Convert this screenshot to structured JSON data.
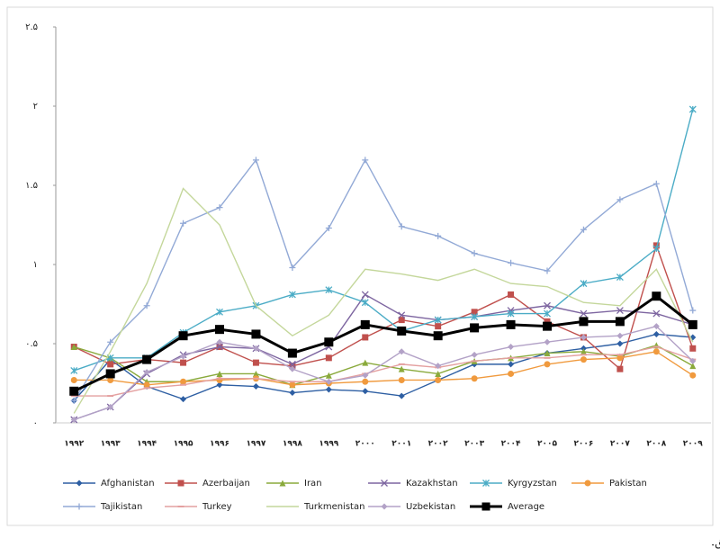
{
  "chart_data": {
    "type": "line",
    "categories": [
      "۱۹۹۲",
      "۱۹۹۳",
      "۱۹۹۴",
      "۱۹۹۵",
      "۱۹۹۶",
      "۱۹۹۷",
      "۱۹۹۸",
      "۱۹۹۹",
      "۲۰۰۰",
      "۲۰۰۱",
      "۲۰۰۲",
      "۲۰۰۳",
      "۲۰۰۴",
      "۲۰۰۵",
      "۲۰۰۶",
      "۲۰۰۷",
      "۲۰۰۸",
      "۲۰۰۹"
    ],
    "ylim": [
      0,
      2.5
    ],
    "yticks": [
      {
        "value": 0,
        "label": "۰"
      },
      {
        "value": 0.5,
        "label": "۰.۵"
      },
      {
        "value": 1,
        "label": "۱"
      },
      {
        "value": 1.5,
        "label": "۱.۵"
      },
      {
        "value": 2,
        "label": "۲"
      },
      {
        "value": 2.5,
        "label": "۲.۵"
      }
    ],
    "grid": false,
    "legend": "bottom",
    "series": [
      {
        "name": "Afghanistan",
        "color": "#2e5fa3",
        "marker": "diamond",
        "values": [
          0.14,
          0.4,
          0.23,
          0.15,
          0.24,
          0.23,
          0.19,
          0.21,
          0.2,
          0.17,
          0.27,
          0.37,
          0.37,
          0.44,
          0.47,
          0.5,
          0.56,
          0.54
        ]
      },
      {
        "name": "Azerbaijan",
        "color": "#c0504d",
        "marker": "square",
        "values": [
          0.48,
          0.37,
          0.4,
          0.38,
          0.48,
          0.38,
          0.36,
          0.41,
          0.54,
          0.65,
          0.61,
          0.7,
          0.81,
          0.64,
          0.54,
          0.34,
          1.12,
          0.47
        ]
      },
      {
        "name": "Iran",
        "color": "#8aaa3c",
        "marker": "triangle",
        "values": [
          0.48,
          0.41,
          0.26,
          0.26,
          0.31,
          0.31,
          0.24,
          0.3,
          0.38,
          0.34,
          0.31,
          0.39,
          0.41,
          0.44,
          0.45,
          0.42,
          0.49,
          0.36
        ]
      },
      {
        "name": "Kazakhstan",
        "color": "#7d65a0",
        "marker": "x",
        "values": [
          0.02,
          0.1,
          0.31,
          0.43,
          0.48,
          0.47,
          0.37,
          0.48,
          0.81,
          0.68,
          0.65,
          0.67,
          0.71,
          0.74,
          0.69,
          0.71,
          0.69,
          0.62
        ]
      },
      {
        "name": "Kyrgyzstan",
        "color": "#4bacc6",
        "marker": "star",
        "values": [
          0.33,
          0.41,
          0.41,
          0.57,
          0.7,
          0.74,
          0.81,
          0.84,
          0.76,
          0.58,
          0.65,
          0.67,
          0.69,
          0.69,
          0.88,
          0.92,
          1.1,
          1.98
        ]
      },
      {
        "name": "Pakistan",
        "color": "#f09a3e",
        "marker": "circle",
        "values": [
          0.27,
          0.27,
          0.24,
          0.26,
          0.27,
          0.28,
          0.24,
          0.25,
          0.26,
          0.27,
          0.27,
          0.28,
          0.31,
          0.37,
          0.4,
          0.41,
          0.45,
          0.3
        ]
      },
      {
        "name": "Tajikistan",
        "color": "#92a9d6",
        "marker": "plus",
        "values": [
          0.14,
          0.51,
          0.74,
          1.26,
          1.36,
          1.66,
          0.98,
          1.23,
          1.66,
          1.24,
          1.18,
          1.07,
          1.01,
          0.96,
          1.22,
          1.41,
          1.51,
          0.71
        ]
      },
      {
        "name": "Turkey",
        "color": "#e4a0a0",
        "marker": "dash",
        "values": [
          0.17,
          0.17,
          0.22,
          0.24,
          0.28,
          0.28,
          0.26,
          0.26,
          0.31,
          0.37,
          0.35,
          0.39,
          0.41,
          0.41,
          0.43,
          0.43,
          0.48,
          0.4
        ]
      },
      {
        "name": "Turkmenistan",
        "color": "#c4d79b",
        "marker": "none",
        "values": [
          0.06,
          0.45,
          0.88,
          1.48,
          1.25,
          0.74,
          0.55,
          0.68,
          0.97,
          0.94,
          0.9,
          0.97,
          0.88,
          0.86,
          0.76,
          0.74,
          0.97,
          0.51
        ]
      },
      {
        "name": "Uzbekistan",
        "color": "#b3a2c7",
        "marker": "diamond",
        "values": [
          0.02,
          0.1,
          0.32,
          0.42,
          0.51,
          0.47,
          0.34,
          0.26,
          0.3,
          0.45,
          0.36,
          0.43,
          0.48,
          0.51,
          0.54,
          0.55,
          0.61,
          0.39
        ]
      },
      {
        "name": "Average",
        "color": "#000000",
        "marker": "square",
        "values": [
          0.2,
          0.31,
          0.4,
          0.55,
          0.59,
          0.56,
          0.44,
          0.51,
          0.62,
          0.58,
          0.55,
          0.6,
          0.62,
          0.61,
          0.64,
          0.64,
          0.8,
          0.62
        ]
      }
    ]
  },
  "caption": "أخذ: نتایج تحقیق."
}
